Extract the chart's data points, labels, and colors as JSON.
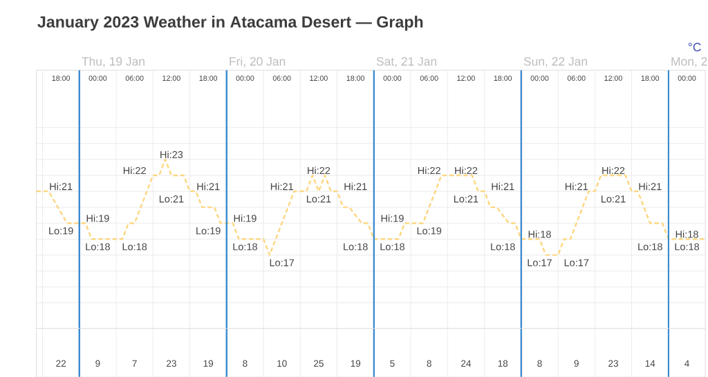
{
  "chart_data": [
    {
      "type": "line",
      "title": "January 2023 Weather in Atacama Desert — Graph",
      "ylabel": "°C",
      "x": [
        "2023-01-18T14:00",
        "2023-01-18T16:00",
        "2023-01-18T19:00",
        "2023-01-18T22:00",
        "2023-01-18T23:00",
        "2023-01-19T04:00",
        "2023-01-19T05:00",
        "2023-01-19T06:00",
        "2023-01-19T09:00",
        "2023-01-19T10:00",
        "2023-01-19T11:00",
        "2023-01-19T12:00",
        "2023-01-19T14:00",
        "2023-01-19T15:00",
        "2023-01-19T16:00",
        "2023-01-19T17:00",
        "2023-01-19T19:00",
        "2023-01-19T20:00",
        "2023-01-19T22:00",
        "2023-01-19T23:00",
        "2023-01-20T03:00",
        "2023-01-20T04:00",
        "2023-01-20T08:00",
        "2023-01-20T10:00",
        "2023-01-20T11:00",
        "2023-01-20T12:00",
        "2023-01-20T13:00",
        "2023-01-20T14:00",
        "2023-01-20T15:00",
        "2023-01-20T16:00",
        "2023-01-20T17:00",
        "2023-01-20T19:00",
        "2023-01-20T20:00",
        "2023-01-20T21:00",
        "2023-01-21T01:00",
        "2023-01-21T02:00",
        "2023-01-21T05:00",
        "2023-01-21T08:00",
        "2023-01-21T13:00",
        "2023-01-21T14:00",
        "2023-01-21T15:00",
        "2023-01-21T16:00",
        "2023-01-21T17:00",
        "2023-01-21T19:00",
        "2023-01-21T20:00",
        "2023-01-21T21:00",
        "2023-01-22T00:00",
        "2023-01-22T01:00",
        "2023-01-22T03:00",
        "2023-01-22T04:00",
        "2023-01-22T05:00",
        "2023-01-22T08:00",
        "2023-01-22T09:00",
        "2023-01-22T10:00",
        "2023-01-22T14:00",
        "2023-01-22T15:00",
        "2023-01-22T16:00",
        "2023-01-22T18:00",
        "2023-01-22T20:00",
        "2023-01-22T21:00",
        "2023-01-22T23:00",
        "2023-01-23T01:00",
        "2023-01-23T03:00"
      ],
      "values": [
        21,
        21,
        19,
        19,
        18,
        18,
        19,
        19,
        22,
        22,
        23,
        22,
        22,
        21,
        21,
        20,
        20,
        19,
        19,
        18,
        18,
        17,
        21,
        21,
        22,
        21,
        22,
        21,
        21,
        20,
        20,
        19,
        19,
        18,
        18,
        19,
        19,
        22,
        22,
        21,
        21,
        20,
        20,
        19,
        19,
        18,
        18,
        17,
        17,
        18,
        18,
        21,
        21,
        22,
        22,
        21,
        21,
        19,
        19,
        18,
        18,
        18,
        18
      ],
      "value_labels": [
        null,
        "Hi:21",
        "Lo:19",
        "Hi:19",
        "Lo:18",
        "Lo:18",
        null,
        null,
        "Hi:22",
        null,
        "Hi:23",
        null,
        null,
        "Lo:21",
        "Hi:21",
        null,
        null,
        "Lo:19",
        "Hi:19",
        "Lo:18",
        null,
        "Lo:17",
        "Hi:21",
        null,
        "Hi:22",
        "Lo:21",
        null,
        null,
        "Hi:21",
        null,
        null,
        null,
        null,
        "Lo:18",
        "Lo:18",
        "Hi:19",
        "Lo:19",
        "Hi:22",
        "Hi:22",
        "Lo:21",
        "Hi:21",
        null,
        null,
        null,
        null,
        "Lo:18",
        "Hi:18",
        "Lo:17",
        "Lo:17",
        null,
        null,
        "Hi:21",
        null,
        "Hi:22",
        null,
        "Lo:21",
        "Hi:21",
        null,
        null,
        "Lo:18",
        "Hi:18",
        "Lo:18",
        null
      ],
      "color": "#fcd781",
      "line_style": "dashed",
      "xlim": [
        "2023-01-18T14:00",
        "2023-01-23T03:00"
      ],
      "ylim": [
        12.4,
        28.6
      ],
      "xticks": [
        {
          "value": "2023-01-18T15:00",
          "label": null
        },
        {
          "value": "2023-01-18T18:00",
          "label": "18:00"
        },
        {
          "value": "2023-01-19T00:00",
          "label": "00:00"
        },
        {
          "value": "2023-01-19T03:00",
          "label": null
        },
        {
          "value": "2023-01-19T06:00",
          "label": "06:00"
        },
        {
          "value": "2023-01-19T09:00",
          "label": null
        },
        {
          "value": "2023-01-19T12:00",
          "label": "12:00"
        },
        {
          "value": "2023-01-19T15:00",
          "label": null
        },
        {
          "value": "2023-01-19T18:00",
          "label": "18:00"
        },
        {
          "value": "2023-01-20T00:00",
          "label": "00:00"
        },
        {
          "value": "2023-01-20T03:00",
          "label": null
        },
        {
          "value": "2023-01-20T06:00",
          "label": "06:00"
        },
        {
          "value": "2023-01-20T09:00",
          "label": null
        },
        {
          "value": "2023-01-20T12:00",
          "label": "12:00"
        },
        {
          "value": "2023-01-20T15:00",
          "label": null
        },
        {
          "value": "2023-01-20T18:00",
          "label": "18:00"
        },
        {
          "value": "2023-01-21T00:00",
          "label": "00:00"
        },
        {
          "value": "2023-01-21T03:00",
          "label": null
        },
        {
          "value": "2023-01-21T06:00",
          "label": "06:00"
        },
        {
          "value": "2023-01-21T09:00",
          "label": null
        },
        {
          "value": "2023-01-21T12:00",
          "label": "12:00"
        },
        {
          "value": "2023-01-21T15:00",
          "label": null
        },
        {
          "value": "2023-01-21T18:00",
          "label": "18:00"
        },
        {
          "value": "2023-01-22T00:00",
          "label": "00:00"
        },
        {
          "value": "2023-01-22T03:00",
          "label": null
        },
        {
          "value": "2023-01-22T06:00",
          "label": "06:00"
        },
        {
          "value": "2023-01-22T09:00",
          "label": null
        },
        {
          "value": "2023-01-22T12:00",
          "label": "12:00"
        },
        {
          "value": "2023-01-22T15:00",
          "label": null
        },
        {
          "value": "2023-01-22T18:00",
          "label": "18:00"
        },
        {
          "value": "2023-01-23T00:00",
          "label": "00:00"
        }
      ],
      "yticks": [
        {
          "value": 14,
          "label": null
        },
        {
          "value": 15,
          "label": null
        },
        {
          "value": 16,
          "label": null
        },
        {
          "value": 17,
          "label": null
        },
        {
          "value": 18,
          "label": null
        },
        {
          "value": 19,
          "label": null
        },
        {
          "value": 20,
          "label": null
        },
        {
          "value": 21,
          "label": null
        },
        {
          "value": 22,
          "label": null
        },
        {
          "value": 23,
          "label": null
        },
        {
          "value": 24,
          "label": null
        },
        {
          "value": 25,
          "label": null
        }
      ],
      "tick_labels": "x",
      "grid": true,
      "ref_lines": [
        {
          "axis": "x",
          "value": "2023-01-18T21:00",
          "label": "Thu, 19 Jan",
          "color": "#3a8bd0"
        },
        {
          "axis": "x",
          "value": "2023-01-19T21:00",
          "label": "Fri, 20 Jan",
          "color": "#3a8bd0"
        },
        {
          "axis": "x",
          "value": "2023-01-20T21:00",
          "label": "Sat, 21 Jan",
          "color": "#3a8bd0"
        },
        {
          "axis": "x",
          "value": "2023-01-21T21:00",
          "label": "Sun, 22 Jan",
          "color": "#3a8bd0"
        },
        {
          "axis": "x",
          "value": "2023-01-22T21:00",
          "label": "Mon, 2",
          "color": "#3a8bd0"
        }
      ]
    },
    {
      "type": "other",
      "categories": [
        null,
        null,
        null,
        null,
        null,
        null,
        null,
        null,
        null,
        null,
        null,
        null,
        null,
        null,
        null,
        null,
        null,
        null
      ],
      "values": [
        22,
        9,
        7,
        23,
        19,
        8,
        10,
        25,
        19,
        5,
        8,
        24,
        18,
        8,
        9,
        23,
        14,
        4
      ],
      "data_labels": true
    }
  ]
}
